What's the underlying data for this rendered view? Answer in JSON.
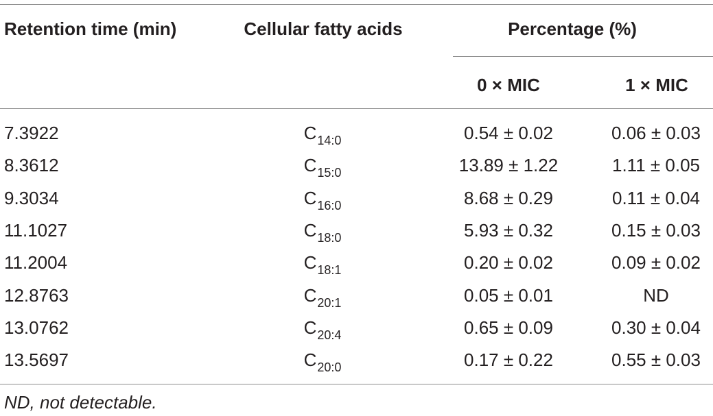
{
  "table": {
    "headers": {
      "retention_time": "Retention time (min)",
      "fatty_acids": "Cellular fatty acids",
      "percentage": "Percentage (%)",
      "mic0": "0 × MIC",
      "mic1": "1 × MIC"
    },
    "rows": [
      {
        "time": "7.3922",
        "acid": "C",
        "acid_sub": "14:0",
        "mic0": "0.54 ± 0.02",
        "mic1": "0.06 ± 0.03"
      },
      {
        "time": "8.3612",
        "acid": "C",
        "acid_sub": "15:0",
        "mic0": "13.89 ± 1.22",
        "mic1": "1.11 ± 0.05"
      },
      {
        "time": "9.3034",
        "acid": "C",
        "acid_sub": "16:0",
        "mic0": "8.68 ± 0.29",
        "mic1": "0.11 ± 0.04"
      },
      {
        "time": "11.1027",
        "acid": "C",
        "acid_sub": "18:0",
        "mic0": "5.93 ± 0.32",
        "mic1": "0.15 ± 0.03"
      },
      {
        "time": "11.2004",
        "acid": "C",
        "acid_sub": "18:1",
        "mic0": "0.20 ± 0.02",
        "mic1": "0.09 ± 0.02"
      },
      {
        "time": "12.8763",
        "acid": "C",
        "acid_sub": "20:1",
        "mic0": "0.05 ± 0.01",
        "mic1": "ND"
      },
      {
        "time": "13.0762",
        "acid": "C",
        "acid_sub": "20:4",
        "mic0": "0.65 ± 0.09",
        "mic1": "0.30 ± 0.04"
      },
      {
        "time": "13.5697",
        "acid": "C",
        "acid_sub": "20:0",
        "mic0": "0.17 ± 0.22",
        "mic1": "0.55 ± 0.03"
      }
    ]
  },
  "footnote": "ND, not detectable."
}
